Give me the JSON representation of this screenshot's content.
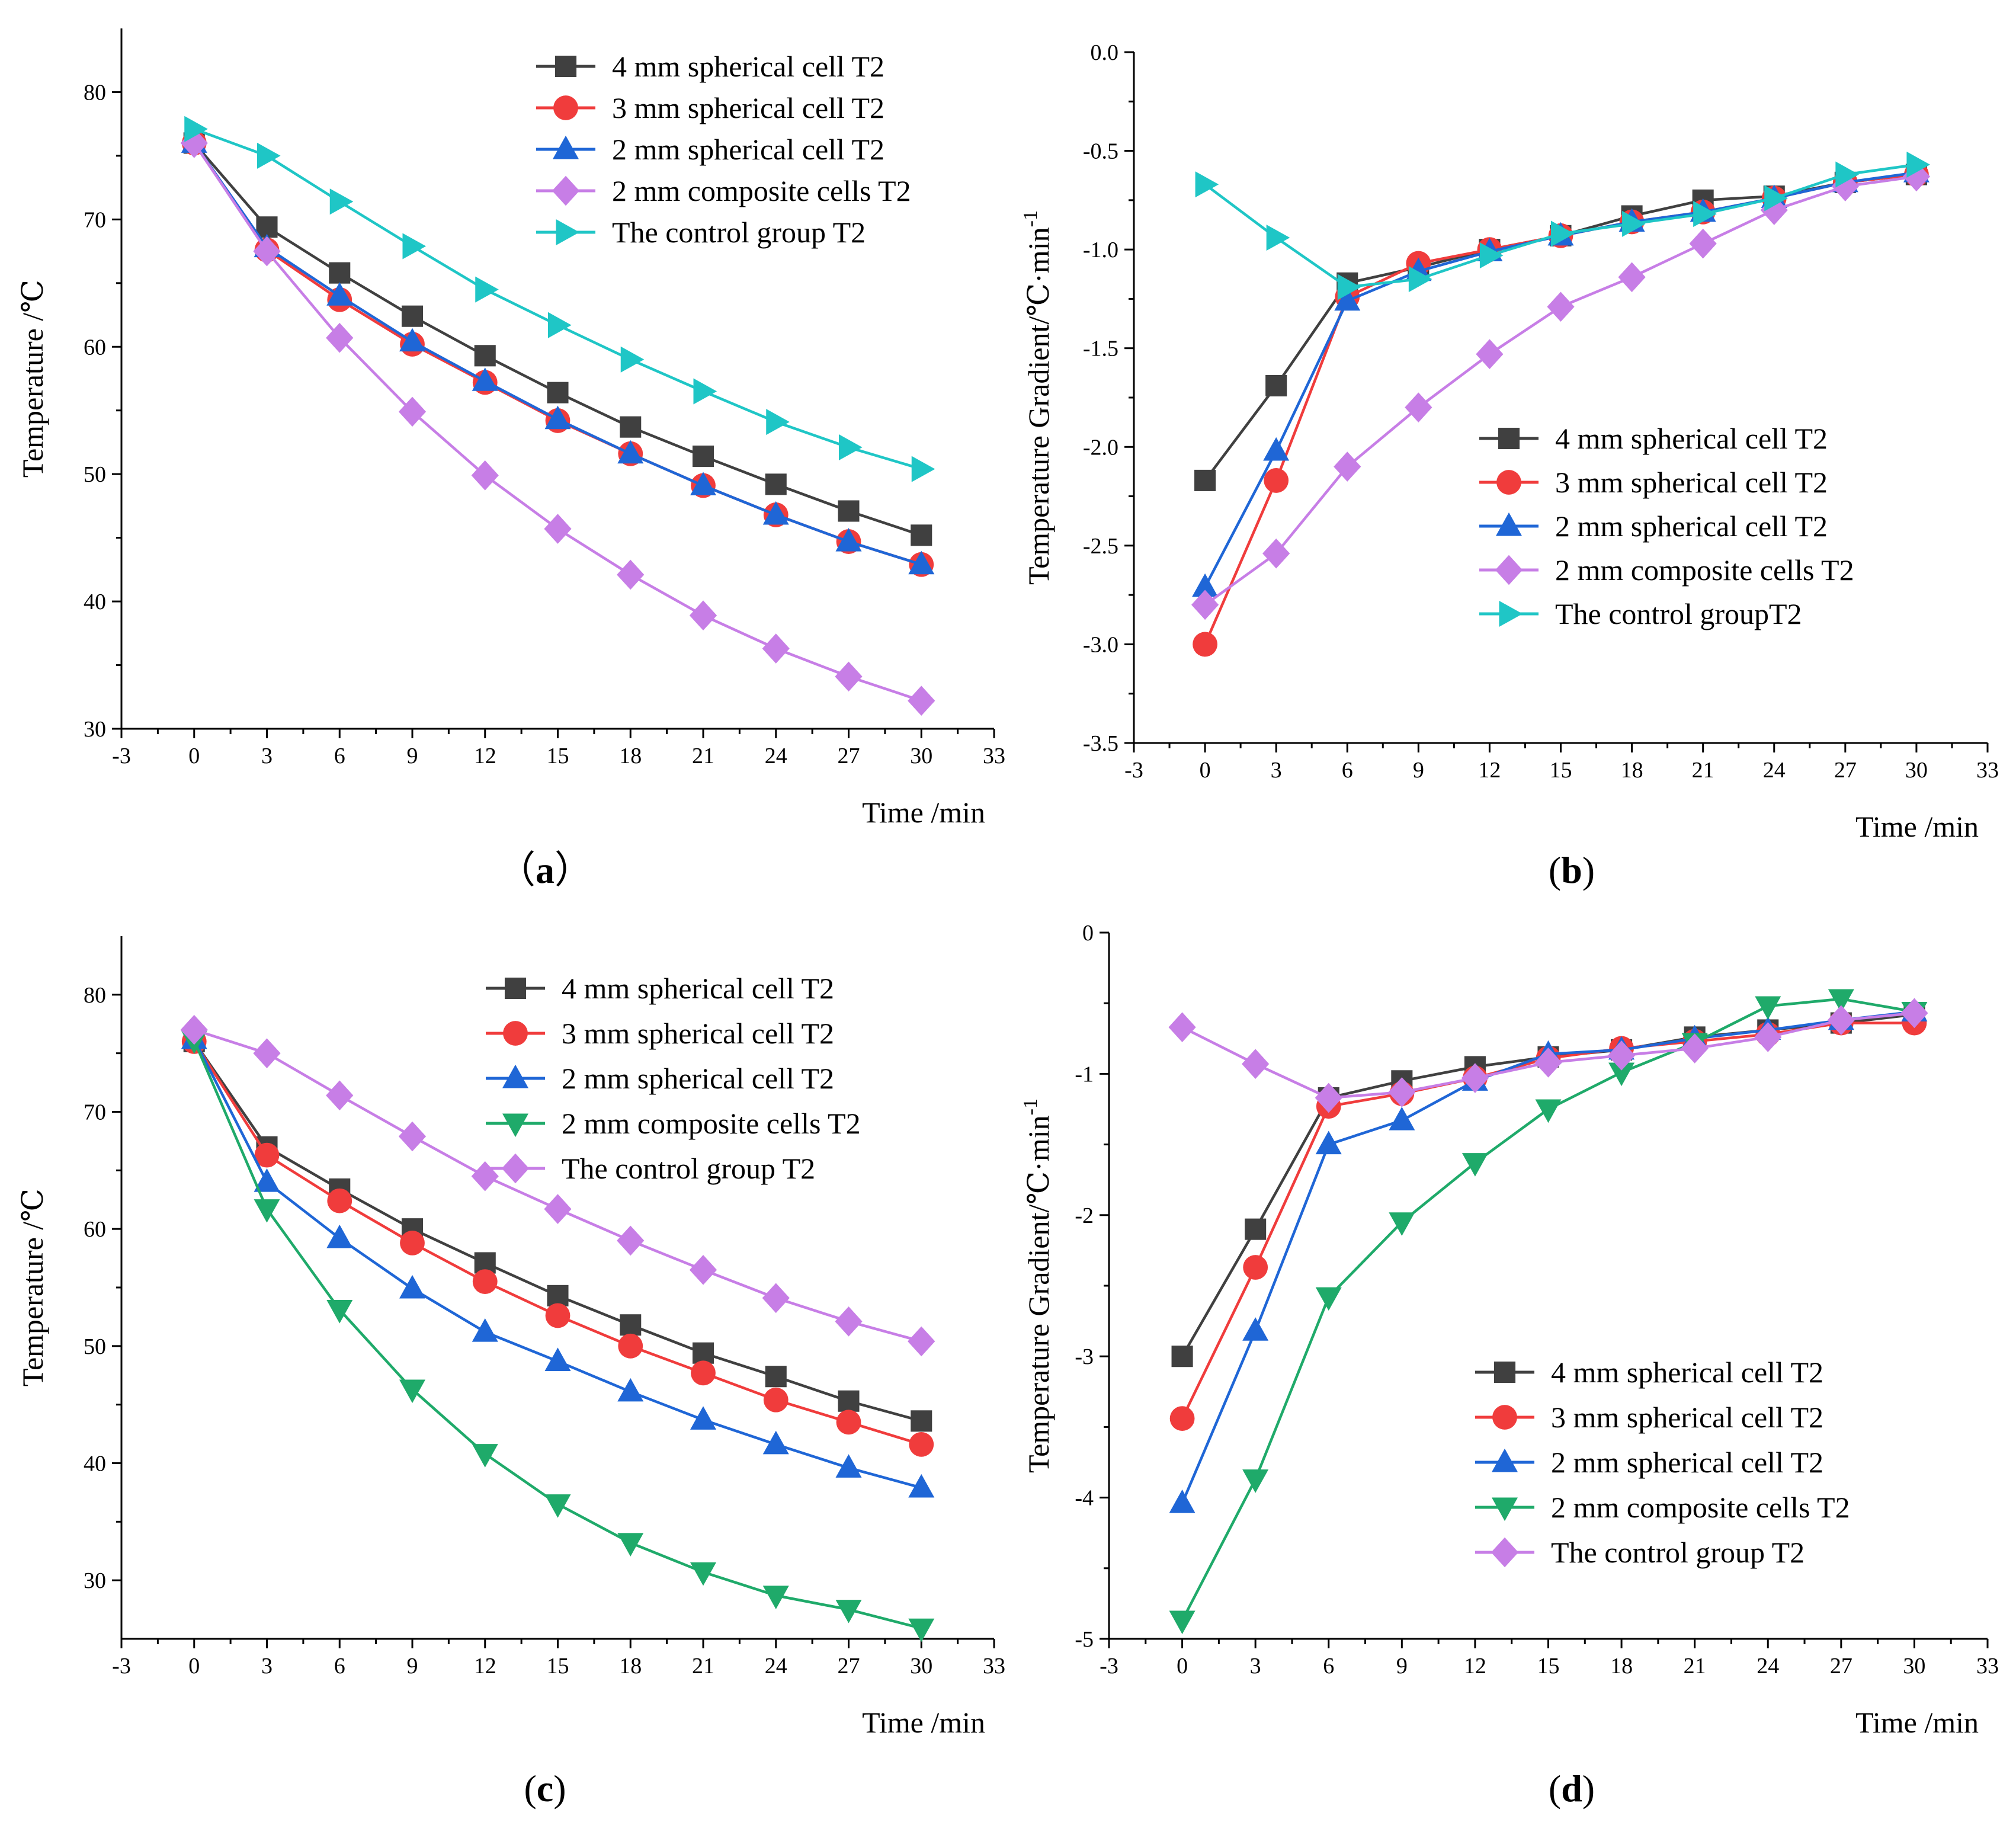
{
  "figure": {
    "panels": [
      {
        "id": "a",
        "caption_open": "（",
        "caption_letter": "a",
        "caption_close": "）"
      },
      {
        "id": "b",
        "caption_open": "(",
        "caption_letter": "b",
        "caption_close": ")"
      },
      {
        "id": "c",
        "caption_open": "(",
        "caption_letter": "c",
        "caption_close": ")"
      },
      {
        "id": "d",
        "caption_open": "(",
        "caption_letter": "d",
        "caption_close": ")"
      }
    ]
  },
  "chart_data": [
    {
      "panel": "a",
      "type": "line",
      "title": "",
      "xlabel": "Time /min",
      "ylabel": "Temperature /℃",
      "xlim": [
        -3,
        33
      ],
      "ylim": [
        30,
        85
      ],
      "xticks": [
        "-3",
        "0",
        "3",
        "6",
        "9",
        "12",
        "15",
        "18",
        "21",
        "24",
        "27",
        "30",
        "33"
      ],
      "yticks": [
        "30",
        "40",
        "50",
        "60",
        "70",
        "80"
      ],
      "legend_position": "top-right",
      "x": [
        0,
        3,
        6,
        9,
        12,
        15,
        18,
        21,
        24,
        27,
        30
      ],
      "series": [
        {
          "name": "4 mm spherical cell T2",
          "color": "#404040",
          "marker": "square",
          "values": [
            76.0,
            69.4,
            65.8,
            62.4,
            59.3,
            56.4,
            53.7,
            51.4,
            49.2,
            47.1,
            45.2
          ]
        },
        {
          "name": "3 mm spherical cell T2",
          "color": "#f03c3c",
          "marker": "circle",
          "values": [
            76.0,
            67.6,
            63.7,
            60.2,
            57.2,
            54.2,
            51.6,
            49.1,
            46.8,
            44.7,
            42.9
          ]
        },
        {
          "name": "2 mm spherical cell T2",
          "color": "#1f66d6",
          "marker": "triangle-up",
          "values": [
            76.0,
            67.8,
            64.0,
            60.4,
            57.3,
            54.3,
            51.6,
            49.1,
            46.8,
            44.7,
            42.9
          ]
        },
        {
          "name": "2 mm composite cells T2",
          "color": "#c77ee6",
          "marker": "diamond",
          "values": [
            76.0,
            67.5,
            60.7,
            54.9,
            49.9,
            45.7,
            42.1,
            38.9,
            36.3,
            34.1,
            32.2
          ]
        },
        {
          "name": "The control group T2",
          "color": "#1fc6c6",
          "marker": "triangle-right",
          "values": [
            77.1,
            75.0,
            71.4,
            67.9,
            64.5,
            61.7,
            59.0,
            56.5,
            54.1,
            52.1,
            50.4
          ]
        }
      ]
    },
    {
      "panel": "b",
      "type": "line",
      "title": "",
      "xlabel": "Time /min",
      "ylabel": "Temperature Gradient/℃·min",
      "ylabel_superscript": "-1",
      "xlim": [
        -3,
        33
      ],
      "ylim": [
        -3.5,
        0.0
      ],
      "xticks": [
        "-3",
        "0",
        "3",
        "6",
        "9",
        "12",
        "15",
        "18",
        "21",
        "24",
        "27",
        "30",
        "33"
      ],
      "yticks": [
        "-3.5",
        "-3.0",
        "-2.5",
        "-2.0",
        "-1.5",
        "-1.0",
        "-0.5",
        "0.0"
      ],
      "legend_position": "center-right",
      "x": [
        0,
        3,
        6,
        9,
        12,
        15,
        18,
        21,
        24,
        27,
        30
      ],
      "series": [
        {
          "name": "4 mm spherical cell T2",
          "color": "#404040",
          "marker": "square",
          "values": [
            -2.17,
            -1.69,
            -1.17,
            -1.09,
            -1.0,
            -0.93,
            -0.83,
            -0.75,
            -0.73,
            -0.66,
            -0.62
          ]
        },
        {
          "name": "3 mm spherical cell T2",
          "color": "#f03c3c",
          "marker": "circle",
          "values": [
            -3.0,
            -2.17,
            -1.24,
            -1.07,
            -1.0,
            -0.93,
            -0.86,
            -0.81,
            -0.74,
            -0.66,
            -0.62
          ]
        },
        {
          "name": "2 mm spherical cell T2",
          "color": "#1f66d6",
          "marker": "triangle-up",
          "values": [
            -2.71,
            -2.02,
            -1.26,
            -1.11,
            -1.01,
            -0.93,
            -0.86,
            -0.81,
            -0.74,
            -0.66,
            -0.61
          ]
        },
        {
          "name": "2 mm composite cells T2",
          "color": "#c77ee6",
          "marker": "diamond",
          "values": [
            -2.8,
            -2.54,
            -2.1,
            -1.8,
            -1.53,
            -1.29,
            -1.14,
            -0.97,
            -0.8,
            -0.68,
            -0.63
          ]
        },
        {
          "name": "The control groupT2",
          "color": "#1fc6c6",
          "marker": "triangle-right",
          "values": [
            -0.67,
            -0.94,
            -1.19,
            -1.15,
            -1.03,
            -0.92,
            -0.87,
            -0.82,
            -0.74,
            -0.62,
            -0.57
          ]
        }
      ]
    },
    {
      "panel": "c",
      "type": "line",
      "title": "",
      "xlabel": "Time /min",
      "ylabel": "Temperature /℃",
      "xlim": [
        -3,
        33
      ],
      "ylim": [
        25,
        85
      ],
      "xticks": [
        "-3",
        "0",
        "3",
        "6",
        "9",
        "12",
        "15",
        "18",
        "21",
        "24",
        "27",
        "30",
        "33"
      ],
      "yticks": [
        "30",
        "40",
        "50",
        "60",
        "70",
        "80"
      ],
      "legend_position": "top-right",
      "x": [
        0,
        3,
        6,
        9,
        12,
        15,
        18,
        21,
        24,
        27,
        30
      ],
      "series": [
        {
          "name": "4 mm spherical cell T2",
          "color": "#404040",
          "marker": "square",
          "values": [
            76.0,
            67.0,
            63.4,
            60.0,
            57.1,
            54.3,
            51.8,
            49.4,
            47.4,
            45.3,
            43.6
          ]
        },
        {
          "name": "3 mm spherical cell T2",
          "color": "#f03c3c",
          "marker": "circle",
          "values": [
            76.0,
            66.3,
            62.4,
            58.8,
            55.5,
            52.6,
            50.0,
            47.7,
            45.4,
            43.5,
            41.6
          ]
        },
        {
          "name": "2 mm spherical cell T2",
          "color": "#1f66d6",
          "marker": "triangle-up",
          "values": [
            76.2,
            64.0,
            59.2,
            54.9,
            51.2,
            48.7,
            46.1,
            43.7,
            41.6,
            39.6,
            37.9
          ]
        },
        {
          "name": "2 mm composite cells T2",
          "color": "#1faa6a",
          "marker": "triangle-down",
          "values": [
            76.1,
            61.7,
            53.1,
            46.3,
            40.8,
            36.5,
            33.2,
            30.7,
            28.7,
            27.5,
            25.9
          ]
        },
        {
          "name": "The control group T2",
          "color": "#c77ee6",
          "marker": "diamond",
          "values": [
            77.0,
            75.0,
            71.4,
            67.9,
            64.5,
            61.7,
            59.0,
            56.5,
            54.1,
            52.1,
            50.4
          ]
        }
      ]
    },
    {
      "panel": "d",
      "type": "line",
      "title": "",
      "xlabel": "Time /min",
      "ylabel": "Temperature Gradient/℃·min",
      "ylabel_superscript": "-1",
      "xlim": [
        -3,
        33
      ],
      "ylim": [
        -5,
        0
      ],
      "xticks": [
        "-3",
        "0",
        "3",
        "6",
        "9",
        "12",
        "15",
        "18",
        "21",
        "24",
        "27",
        "30",
        "33"
      ],
      "yticks": [
        "-5",
        "-4",
        "-3",
        "-2",
        "-1",
        "0"
      ],
      "legend_position": "bottom-right",
      "x": [
        0,
        3,
        6,
        9,
        12,
        15,
        18,
        21,
        24,
        27,
        30
      ],
      "series": [
        {
          "name": "4 mm spherical cell T2",
          "color": "#404040",
          "marker": "square",
          "values": [
            -3.0,
            -2.1,
            -1.17,
            -1.05,
            -0.95,
            -0.88,
            -0.83,
            -0.74,
            -0.69,
            -0.64,
            -0.58
          ]
        },
        {
          "name": "3 mm spherical cell T2",
          "color": "#f03c3c",
          "marker": "circle",
          "values": [
            -3.44,
            -2.37,
            -1.23,
            -1.14,
            -1.03,
            -0.89,
            -0.82,
            -0.77,
            -0.72,
            -0.64,
            -0.64
          ]
        },
        {
          "name": "2 mm spherical cell T2",
          "color": "#1f66d6",
          "marker": "triangle-up",
          "values": [
            -4.04,
            -2.82,
            -1.5,
            -1.33,
            -1.05,
            -0.86,
            -0.83,
            -0.75,
            -0.69,
            -0.62,
            -0.56
          ]
        },
        {
          "name": "2 mm composite cells T2",
          "color": "#1faa6a",
          "marker": "triangle-down",
          "values": [
            -4.87,
            -3.87,
            -2.58,
            -2.05,
            -1.63,
            -1.25,
            -0.99,
            -0.78,
            -0.52,
            -0.47,
            -0.56
          ]
        },
        {
          "name": "The control group T2",
          "color": "#c77ee6",
          "marker": "diamond",
          "values": [
            -0.67,
            -0.93,
            -1.17,
            -1.13,
            -1.03,
            -0.92,
            -0.87,
            -0.82,
            -0.74,
            -0.62,
            -0.57
          ]
        }
      ]
    }
  ]
}
